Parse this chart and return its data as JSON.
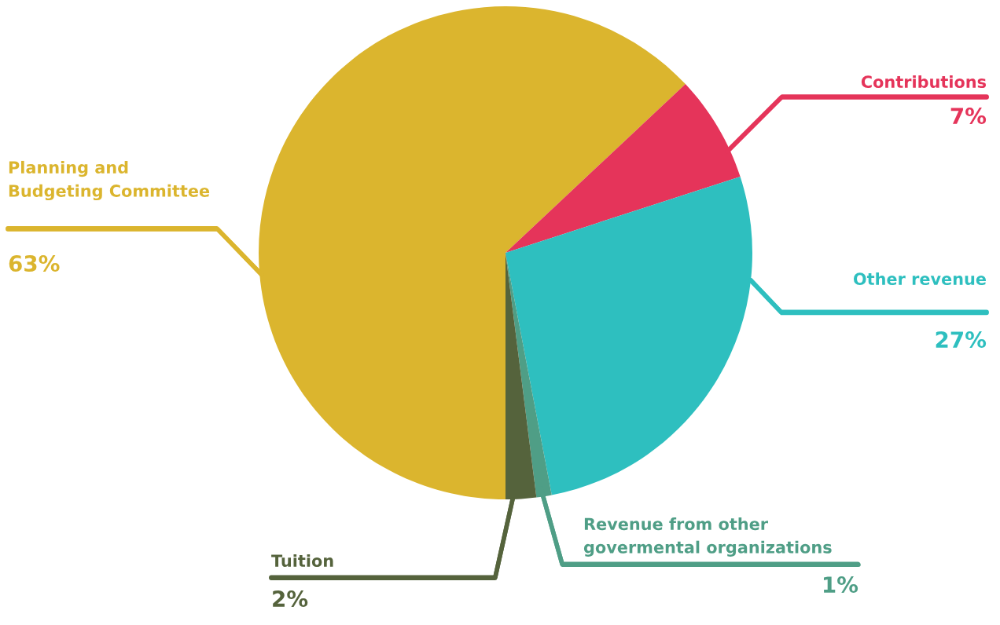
{
  "chart_data": {
    "type": "pie",
    "categories": [
      "Planning and\nBudgeting Committee",
      "Contributions",
      "Other revenue",
      "Revenue from other\ngovermental organizations",
      "Tuition"
    ],
    "values": [
      63,
      7,
      27,
      1,
      2
    ],
    "value_labels": [
      "63%",
      "7%",
      "27%",
      "1%",
      "2%"
    ],
    "colors": [
      "#dbb52e",
      "#e5345a",
      "#2ebfbf",
      "#4f9e86",
      "#55633c"
    ]
  }
}
